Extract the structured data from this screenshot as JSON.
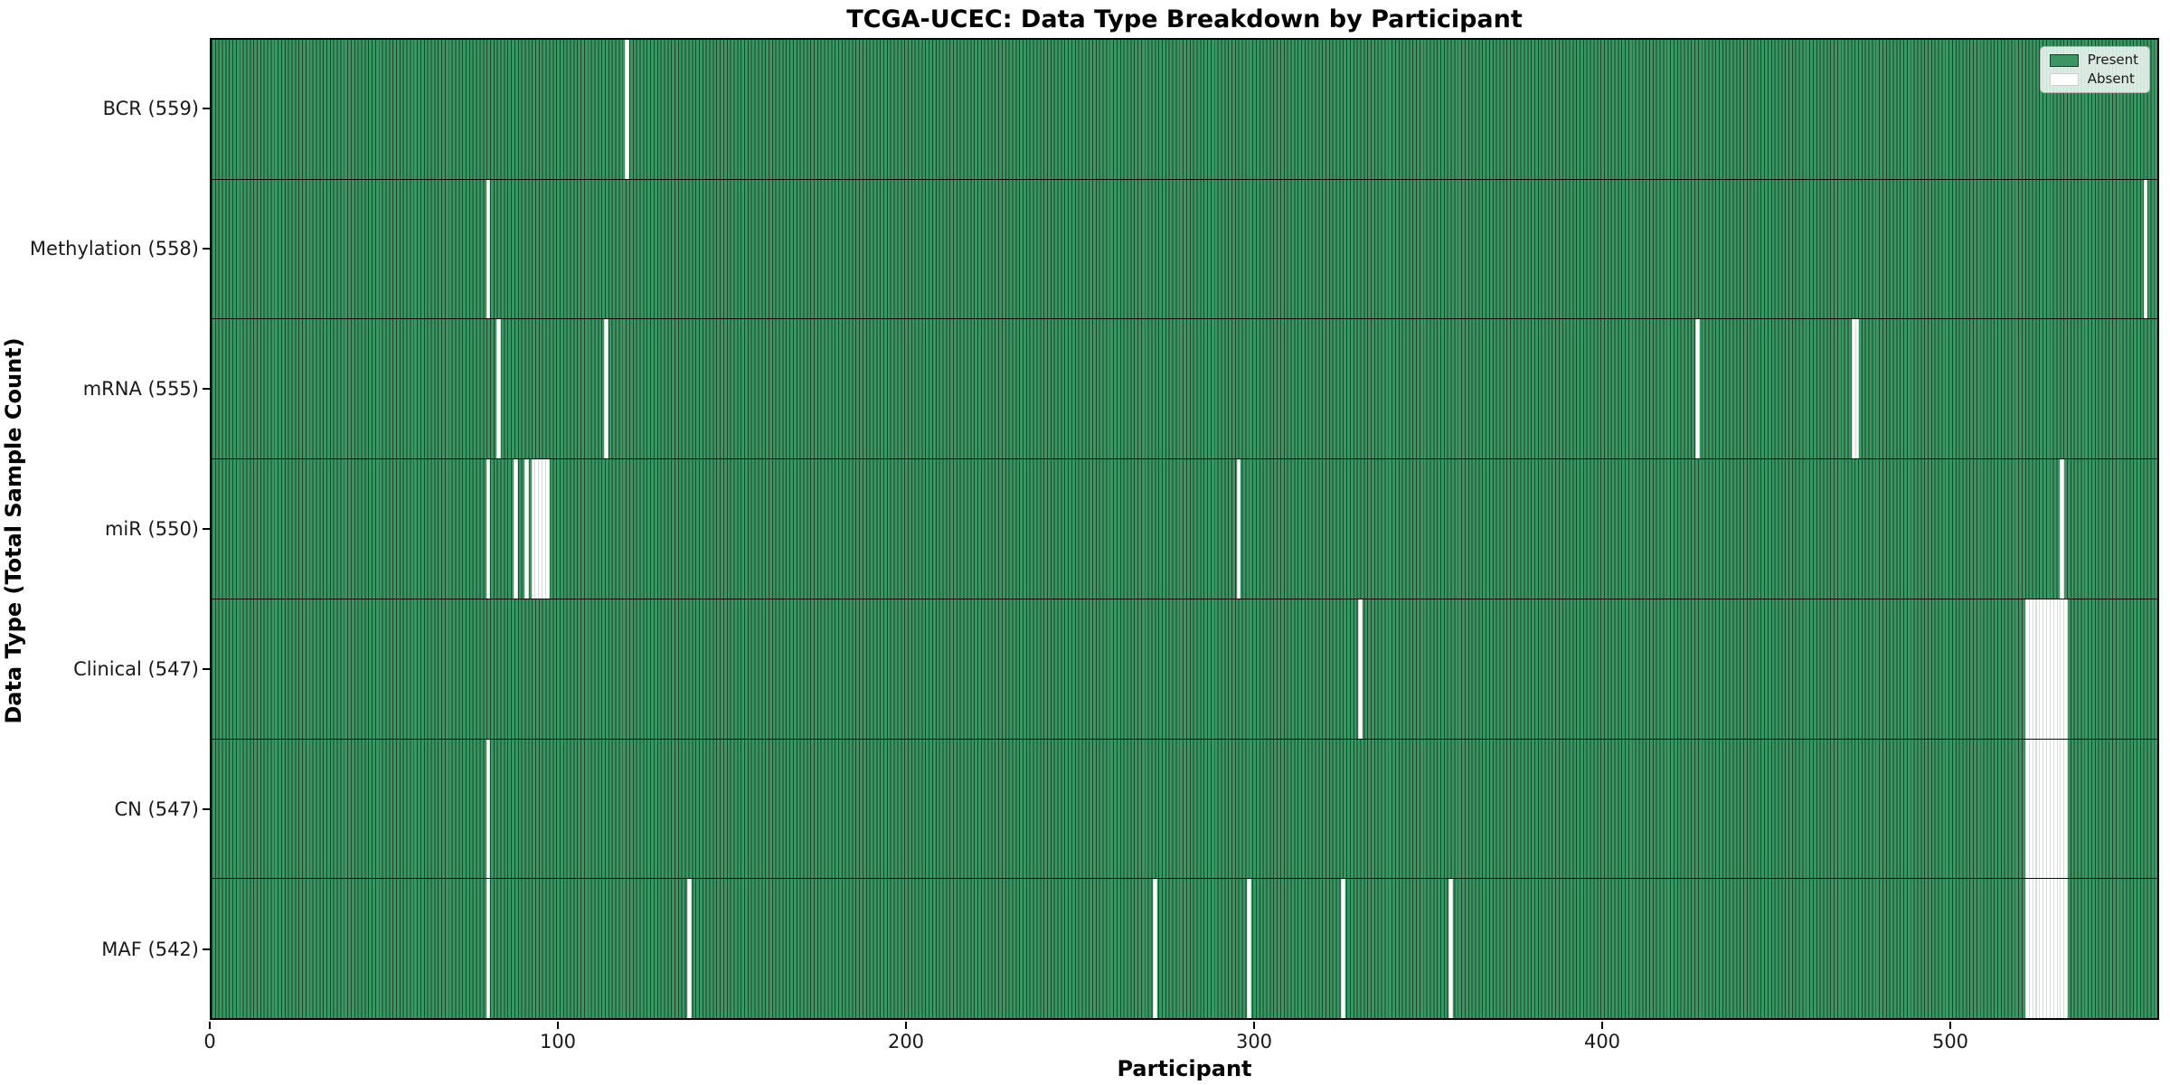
{
  "figure": {
    "title": "TCGA-UCEC: Data Type Breakdown by Participant"
  },
  "colors": {
    "present_fill": "#3b9663",
    "present_edge": "#16482c",
    "absent_fill": "#fdfdfd",
    "absent_edge": "#d7ded7",
    "axis_color": "#000000"
  },
  "chart_data": {
    "type": "heatmap",
    "title": "TCGA-UCEC: Data Type Breakdown by Participant",
    "xlabel": "Participant",
    "ylabel": "Data Type (Total Sample Count)",
    "x_ticks": [
      0,
      100,
      200,
      300,
      400,
      500
    ],
    "x_range": [
      0,
      560
    ],
    "n_participants": 560,
    "grid": false,
    "legend_position": "upper right",
    "legend": [
      {
        "label": "Present",
        "color": "#3b9663"
      },
      {
        "label": "Absent",
        "color": "#ffffff"
      }
    ],
    "rows": [
      {
        "name": "BCR",
        "label": "BCR (559)",
        "total_present": 559,
        "absent_participants": [
          119
        ]
      },
      {
        "name": "Methylation",
        "label": "Methylation (558)",
        "total_present": 558,
        "absent_participants": [
          79,
          556
        ]
      },
      {
        "name": "mRNA",
        "label": "mRNA (555)",
        "total_present": 555,
        "absent_participants": [
          82,
          113,
          427,
          472,
          473
        ]
      },
      {
        "name": "miR",
        "label": "miR (550)",
        "total_present": 550,
        "absent_participants": [
          79,
          87,
          90,
          92,
          93,
          94,
          95,
          96,
          295,
          532
        ]
      },
      {
        "name": "Clinical",
        "label": "Clinical (547)",
        "total_present": 547,
        "absent_participants": [
          330,
          522,
          523,
          524,
          525,
          526,
          527,
          528,
          529,
          530,
          531,
          532,
          533
        ]
      },
      {
        "name": "CN",
        "label": "CN (547)",
        "total_present": 547,
        "absent_participants": [
          79,
          522,
          523,
          524,
          525,
          526,
          527,
          528,
          529,
          530,
          531,
          532,
          533
        ]
      },
      {
        "name": "MAF",
        "label": "MAF (542)",
        "total_present": 542,
        "absent_participants": [
          79,
          137,
          271,
          298,
          325,
          356,
          522,
          523,
          524,
          525,
          526,
          527,
          528,
          529,
          530,
          531,
          532,
          533
        ]
      }
    ]
  }
}
